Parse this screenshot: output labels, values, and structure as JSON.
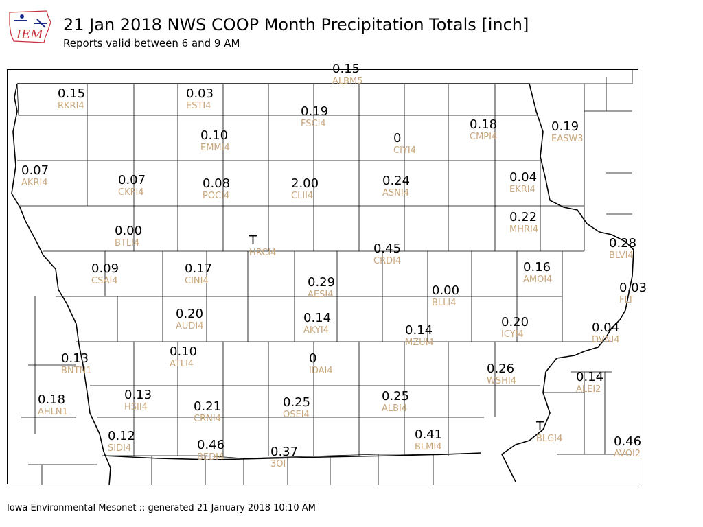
{
  "header": {
    "logo_text": "IEM",
    "title": "21 Jan 2018 NWS COOP Month Precipitation Totals [inch]",
    "subtitle": "Reports valid between 6 and 9 AM"
  },
  "footer": {
    "text": "Iowa Environmental Mesonet :: generated 21 January 2018 10:10 AM"
  },
  "map": {
    "stations": [
      {
        "id": "RKRI4",
        "value": "0.15"
      },
      {
        "id": "ESTI4",
        "value": "0.03"
      },
      {
        "id": "FSCI4",
        "value": "0.19"
      },
      {
        "id": "ALBM5",
        "value": "0.15"
      },
      {
        "id": "EMMI4",
        "value": "0.10"
      },
      {
        "id": "CIYI4",
        "value": "0"
      },
      {
        "id": "CMPI4",
        "value": "0.18"
      },
      {
        "id": "EASW3",
        "value": "0.19"
      },
      {
        "id": "AKRI4",
        "value": "0.07"
      },
      {
        "id": "CKPI4",
        "value": "0.07"
      },
      {
        "id": "POCI4",
        "value": "0.08"
      },
      {
        "id": "CLII4",
        "value": "2.00"
      },
      {
        "id": "ASNI4",
        "value": "0.24"
      },
      {
        "id": "EKRI4",
        "value": "0.04"
      },
      {
        "id": "MHRI4",
        "value": "0.22"
      },
      {
        "id": "BTLI4",
        "value": "0.00"
      },
      {
        "id": "HRCI4",
        "value": "T"
      },
      {
        "id": "CRDI4",
        "value": "0.45"
      },
      {
        "id": "BLVI4",
        "value": "0.28"
      },
      {
        "id": "CSAI4",
        "value": "0.09"
      },
      {
        "id": "CINI4",
        "value": "0.17"
      },
      {
        "id": "AESI4",
        "value": "0.29"
      },
      {
        "id": "AMOI4",
        "value": "0.16"
      },
      {
        "id": "BLLI4",
        "value": "0.00"
      },
      {
        "id": "FLT",
        "value": "0.03"
      },
      {
        "id": "AUDI4",
        "value": "0.20"
      },
      {
        "id": "AKYI4",
        "value": "0.14"
      },
      {
        "id": "ICYI4",
        "value": "0.20"
      },
      {
        "id": "MZUI4",
        "value": "0.14"
      },
      {
        "id": "DVNI4",
        "value": "0.04"
      },
      {
        "id": "BNTN1",
        "value": "0.13"
      },
      {
        "id": "ATLI4",
        "value": "0.10"
      },
      {
        "id": "IDAI4",
        "value": "0"
      },
      {
        "id": "WSHI4",
        "value": "0.26"
      },
      {
        "id": "ALEI2",
        "value": "0.14"
      },
      {
        "id": "AHLN1",
        "value": "0.18"
      },
      {
        "id": "HSII4",
        "value": "0.13"
      },
      {
        "id": "CRNI4",
        "value": "0.21"
      },
      {
        "id": "OSEI4",
        "value": "0.25"
      },
      {
        "id": "ALBI4",
        "value": "0.25"
      },
      {
        "id": "BLGI4",
        "value": "T"
      },
      {
        "id": "SIDI4",
        "value": "0.12"
      },
      {
        "id": "BEDI4",
        "value": "0.46"
      },
      {
        "id": "3OI",
        "value": "0.37"
      },
      {
        "id": "BLMI4",
        "value": "0.41"
      },
      {
        "id": "AVOI2",
        "value": "0.46"
      }
    ]
  }
}
